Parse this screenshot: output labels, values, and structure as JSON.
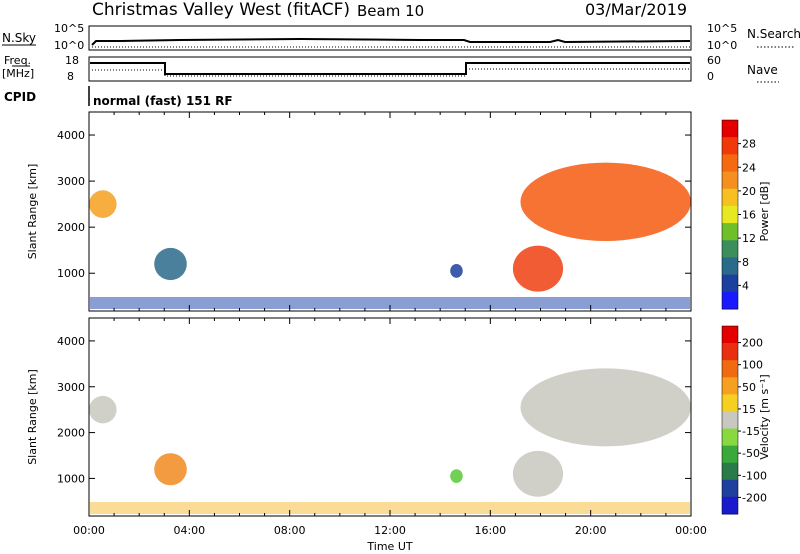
{
  "header": {
    "station": "Christmas Valley West (fitACF)",
    "beam": "Beam 10",
    "date": "03/Mar/2019"
  },
  "strips": {
    "nsky_label": "N.Sky",
    "nsearch_label": "N.Search",
    "nsky_ticks": [
      "10^5",
      "10^0"
    ],
    "nsearch_ticks": [
      "10^5",
      "10^0"
    ],
    "freq_label_top": "Freq.",
    "freq_label_bottom": "[MHz]",
    "freq_ticks": [
      "18",
      "8"
    ],
    "nave_label": "Nave",
    "nave_ticks": [
      "60",
      "0"
    ],
    "cpid_label": "CPID",
    "cpid_text": "normal (fast) 151 RF"
  },
  "chart_data": [
    {
      "type": "heatmap",
      "name": "power",
      "ylabel": "Slant Range [km]",
      "xlabel": "",
      "xlim": [
        0,
        24
      ],
      "ylim": [
        180,
        4500
      ],
      "yticks": [
        "1000",
        "2000",
        "3000",
        "4000"
      ],
      "colorbar": {
        "label": "Power [dB]",
        "ticks": [
          "4",
          "8",
          "12",
          "16",
          "20",
          "24",
          "28"
        ],
        "colors": [
          "#1a1aff",
          "#1d3f9e",
          "#2a6a8a",
          "#3a8f5a",
          "#6fbf2a",
          "#e8e820",
          "#f5c020",
          "#f59020",
          "#f56a10",
          "#f03a0a",
          "#e50000"
        ]
      },
      "regions": [
        {
          "t": [
            0.0,
            1.1
          ],
          "r": [
            2200,
            2800
          ],
          "color": "#f5a020"
        },
        {
          "t": [
            2.6,
            3.9
          ],
          "r": [
            850,
            1550
          ],
          "color": "#2a6a8a"
        },
        {
          "t": [
            14.4,
            14.9
          ],
          "r": [
            900,
            1200
          ],
          "color": "#1d3f9e"
        },
        {
          "t": [
            16.9,
            18.9
          ],
          "r": [
            600,
            1600
          ],
          "color": "#f04010"
        },
        {
          "t": [
            17.2,
            24.0
          ],
          "r": [
            1700,
            3400
          ],
          "color": "#f55a10"
        }
      ]
    },
    {
      "type": "heatmap",
      "name": "velocity",
      "ylabel": "Slant Range [km]",
      "xlabel": "Time UT",
      "xlim": [
        0,
        24
      ],
      "ylim": [
        180,
        4500
      ],
      "xticks": [
        "00:00",
        "04:00",
        "08:00",
        "12:00",
        "16:00",
        "20:00",
        "00:00"
      ],
      "yticks": [
        "1000",
        "2000",
        "3000",
        "4000"
      ],
      "colorbar": {
        "label": "Velocity [m s⁻¹]",
        "ticks": [
          "200",
          "100",
          "50",
          "15",
          "-15",
          "-50",
          "-100",
          "-200"
        ],
        "colors": [
          "#1a1acc",
          "#1d3f9e",
          "#2a7a4a",
          "#3aa83a",
          "#88d840",
          "#c8c8c0",
          "#f5d020",
          "#f5a020",
          "#f06a10",
          "#e83010",
          "#e50000"
        ]
      },
      "regions": [
        {
          "t": [
            0.0,
            1.1
          ],
          "r": [
            2200,
            2800
          ],
          "color": "#c8c8c0"
        },
        {
          "t": [
            2.6,
            3.9
          ],
          "r": [
            850,
            1550
          ],
          "color": "#f08a20"
        },
        {
          "t": [
            14.4,
            14.9
          ],
          "r": [
            900,
            1200
          ],
          "color": "#5ac83a"
        },
        {
          "t": [
            16.9,
            18.9
          ],
          "r": [
            600,
            1600
          ],
          "color": "#c8c8c0"
        },
        {
          "t": [
            17.2,
            24.0
          ],
          "r": [
            1700,
            3400
          ],
          "color": "#c8c8c0"
        }
      ]
    }
  ]
}
